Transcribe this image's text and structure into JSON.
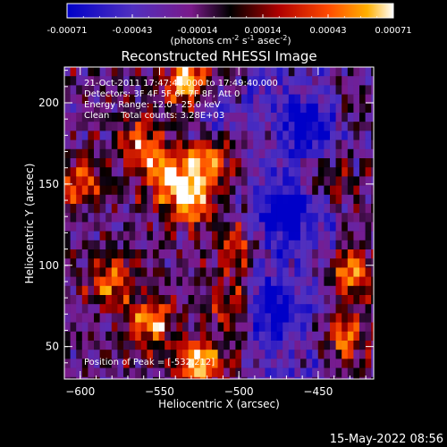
{
  "chart_data": {
    "type": "heatmap",
    "title": "Reconstructed RHESSI Image",
    "xlabel": "Heliocentric X (arcsec)",
    "ylabel": "Heliocentric Y (arcsec)",
    "xlim": [
      -610,
      -415
    ],
    "ylim": [
      30,
      222
    ],
    "x_ticks": [
      -600,
      -550,
      -500,
      -450
    ],
    "y_ticks": [
      50,
      100,
      150,
      200
    ],
    "colorbar": {
      "ticks": [
        "-0.00071",
        "-0.00043",
        "-0.00014",
        "0.00014",
        "0.00043",
        "0.00071"
      ],
      "range": [
        -0.00071,
        0.00071
      ],
      "units_base": "(photons cm",
      "units_sup1": "-2",
      "units_mid": " s",
      "units_sup2": "-1",
      "units_mid2": " asec",
      "units_sup3": "-2",
      "units_end": ")",
      "colors": [
        "#0000c8",
        "#5030c0",
        "#7a1a8a",
        "#000000",
        "#b00000",
        "#ff4a00",
        "#ffb000",
        "#ffffff"
      ]
    },
    "info_lines": [
      "21-Oct-2011 17:47:48.000 to 17:49:40.000",
      "Detectors: 3F 4F 5F 6F 7F 8F, Att 0",
      "Energy Range: 12.0 - 25.0 keV",
      "Clean    Total counts: 3.28E+03"
    ],
    "peak_label": "Position of Peak = [-532,212]",
    "hotspots": [
      {
        "x": -530,
        "y": 140,
        "amp": 1.0
      },
      {
        "x": -545,
        "y": 155,
        "amp": 0.9
      },
      {
        "x": -520,
        "y": 165,
        "amp": 0.8
      },
      {
        "x": -560,
        "y": 175,
        "amp": 0.7
      },
      {
        "x": -532,
        "y": 212,
        "amp": 1.0
      },
      {
        "x": -525,
        "y": 40,
        "amp": 0.95
      },
      {
        "x": -555,
        "y": 65,
        "amp": 0.8
      },
      {
        "x": -580,
        "y": 90,
        "amp": 0.7
      },
      {
        "x": -600,
        "y": 150,
        "amp": 0.65
      },
      {
        "x": -500,
        "y": 110,
        "amp": 0.6
      },
      {
        "x": -505,
        "y": 75,
        "amp": 0.6
      },
      {
        "x": -430,
        "y": 95,
        "amp": 0.75
      },
      {
        "x": -435,
        "y": 55,
        "amp": 0.7
      },
      {
        "x": -445,
        "y": 155,
        "amp": 0.5
      }
    ],
    "coldspots": [
      {
        "x": -470,
        "y": 130,
        "amp": 0.9
      },
      {
        "x": -455,
        "y": 185,
        "amp": 0.7
      },
      {
        "x": -480,
        "y": 75,
        "amp": 0.7
      },
      {
        "x": -515,
        "y": 195,
        "amp": 0.5
      }
    ]
  },
  "footer": {
    "date": "15-May-2022 08:56"
  }
}
